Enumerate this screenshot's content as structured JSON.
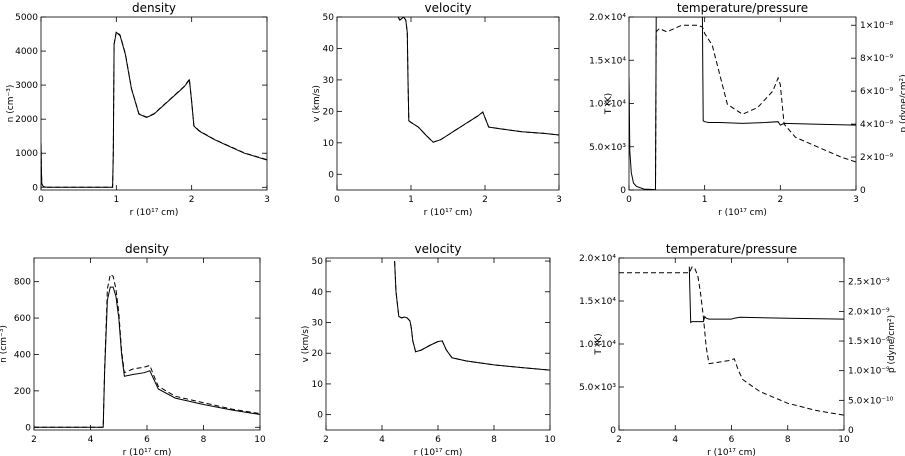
{
  "chart_data": [
    {
      "type": "line",
      "title": "density",
      "xlabel": "r (10¹⁷ cm)",
      "ylabel": "n (cm⁻³)",
      "xlim": [
        0,
        3
      ],
      "ylim": [
        -80,
        5000
      ],
      "xticks": [
        0,
        1,
        2,
        3
      ],
      "xticklabels": [
        "0",
        "1",
        "2",
        "3"
      ],
      "yticks": [
        0,
        1000,
        2000,
        3000,
        4000,
        5000
      ],
      "yticklabels": [
        "0",
        "1000",
        "2000",
        "3000",
        "4000",
        "5000"
      ],
      "series": [
        {
          "style": "solid",
          "x": [
            0,
            0.005,
            0.01,
            0.03,
            0.08,
            0.5,
            0.95,
            0.96,
            0.97,
            1.0,
            1.05,
            1.12,
            1.2,
            1.3,
            1.4,
            1.5,
            1.6,
            1.7,
            1.8,
            1.9,
            1.97,
            2.0,
            2.03,
            2.1,
            2.3,
            2.5,
            2.7,
            3.0
          ],
          "y": [
            1300,
            500,
            100,
            20,
            0,
            0,
            0,
            1000,
            4200,
            4550,
            4450,
            3900,
            2900,
            2150,
            2050,
            2150,
            2350,
            2550,
            2750,
            2950,
            3150,
            2500,
            1800,
            1650,
            1400,
            1200,
            1000,
            800
          ]
        },
        {
          "style": "dashed",
          "x": [
            0,
            0.005,
            0.01,
            0.03,
            0.08,
            0.5,
            0.95,
            0.96,
            0.97,
            1.0,
            1.05,
            1.12,
            1.2,
            1.3,
            1.4,
            1.5,
            1.6,
            1.7,
            1.8,
            1.9,
            1.97,
            2.0,
            2.03,
            2.1,
            2.3,
            2.5,
            2.7,
            3.0
          ],
          "y": [
            1300,
            500,
            100,
            20,
            0,
            0,
            0,
            1000,
            4200,
            4570,
            4470,
            3920,
            2910,
            2160,
            2060,
            2160,
            2360,
            2560,
            2760,
            2960,
            3170,
            2510,
            1810,
            1660,
            1410,
            1210,
            1010,
            810
          ]
        }
      ]
    },
    {
      "type": "line",
      "title": "velocity",
      "xlabel": "r (10¹⁷ cm)",
      "ylabel": "v (km/s)",
      "xlim": [
        0,
        3
      ],
      "ylim": [
        -5,
        50
      ],
      "xticks": [
        0,
        1,
        2,
        3
      ],
      "xticklabels": [
        "0",
        "1",
        "2",
        "3"
      ],
      "yticks": [
        0,
        10,
        20,
        30,
        40,
        50
      ],
      "yticklabels": [
        "0",
        "10",
        "20",
        "30",
        "40",
        "50"
      ],
      "series": [
        {
          "style": "solid",
          "x": [
            0.78,
            0.8,
            0.85,
            0.9,
            0.93,
            0.95,
            0.96,
            0.97,
            1.0,
            1.1,
            1.2,
            1.3,
            1.4,
            1.5,
            1.6,
            1.7,
            1.8,
            1.9,
            1.97,
            2.0,
            2.05,
            2.2,
            2.5,
            2.8,
            3.0
          ],
          "y": [
            50,
            51,
            49,
            50,
            49,
            45,
            30,
            17,
            16.5,
            15,
            12.5,
            10.2,
            11,
            12.5,
            14,
            15.5,
            17,
            18.5,
            19.8,
            18,
            15,
            14.5,
            13.5,
            13,
            12.5
          ]
        },
        {
          "style": "dashed",
          "x": [
            0.78,
            0.8,
            0.85,
            0.9,
            0.93,
            0.95,
            0.96,
            0.97,
            1.0,
            1.1,
            1.2,
            1.3,
            1.4,
            1.5,
            1.6,
            1.7,
            1.8,
            1.9,
            1.97,
            2.0,
            2.05,
            2.2,
            2.5,
            2.8,
            3.0
          ],
          "y": [
            50,
            51,
            49,
            50,
            49,
            45,
            30,
            17,
            16.5,
            15,
            12.5,
            10.2,
            11,
            12.5,
            14,
            15.5,
            17,
            18.5,
            19.8,
            18,
            15,
            14.5,
            13.5,
            13,
            12.5
          ]
        }
      ]
    },
    {
      "type": "line",
      "title": "temperature/pressure",
      "xlabel": "r (10¹⁷ cm)",
      "ylabel": "T (K)",
      "ylabel_right": "p (dyne/cm²)",
      "xlim": [
        0,
        3
      ],
      "ylim": [
        0,
        20000
      ],
      "ylim_right": [
        0,
        1.05e-08
      ],
      "xticks": [
        0,
        1,
        2,
        3
      ],
      "xticklabels": [
        "0",
        "1",
        "2",
        "3"
      ],
      "yticks": [
        0,
        5000,
        10000,
        15000,
        20000
      ],
      "yticklabels": [
        "0",
        "5.0×10³",
        "1.0×10⁴",
        "1.5×10⁴",
        "2.0×10⁴"
      ],
      "yticks_right": [
        0,
        2e-09,
        4e-09,
        6e-09,
        8e-09,
        1e-08
      ],
      "yticklabels_right": [
        "0",
        "2×10⁻⁹",
        "4×10⁻⁹",
        "6×10⁻⁹",
        "8×10⁻⁹",
        "1×10⁻⁸"
      ],
      "series": [
        {
          "style": "solid",
          "axis": "left",
          "x": [
            0,
            0.01,
            0.03,
            0.06,
            0.1,
            0.2,
            0.35,
            0.36,
            0.37,
            0.97,
            0.98,
            1.0,
            1.05,
            1.2,
            1.5,
            1.8,
            1.97,
            2.0,
            2.05,
            2.5,
            3.0
          ],
          "y": [
            13000,
            4500,
            2000,
            800,
            400,
            100,
            50,
            20000,
            20000,
            20000,
            8000,
            7900,
            7800,
            7800,
            7700,
            7800,
            7900,
            7500,
            7700,
            7600,
            7500
          ]
        },
        {
          "style": "dashed",
          "axis": "right",
          "x": [
            0,
            0.02,
            0.05,
            0.1,
            0.2,
            0.35,
            0.36,
            0.4,
            0.5,
            0.7,
            0.9,
            0.97,
            1.0,
            1.1,
            1.2,
            1.3,
            1.5,
            1.7,
            1.9,
            1.97,
            2.0,
            2.05,
            2.2,
            2.5,
            2.8,
            3.0
          ],
          "y": [
            0,
            0,
            0,
            0,
            0,
            0,
            9.6e-09,
            9.8e-09,
            9.6e-09,
            1e-08,
            1e-08,
            9.9e-09,
            9.5e-09,
            8.8e-09,
            7e-09,
            5.2e-09,
            4.6e-09,
            5e-09,
            6e-09,
            6.8e-09,
            6.4e-09,
            4e-09,
            3.2e-09,
            2.6e-09,
            2e-09,
            1.7e-09
          ]
        }
      ]
    },
    {
      "type": "line",
      "title": "density",
      "xlabel": "r (10¹⁷ cm)",
      "ylabel": "n (cm⁻³)",
      "xlim": [
        2,
        10
      ],
      "ylim": [
        -15,
        930
      ],
      "xticks": [
        2,
        4,
        6,
        8,
        10
      ],
      "xticklabels": [
        "2",
        "4",
        "6",
        "8",
        "10"
      ],
      "yticks": [
        0,
        200,
        400,
        600,
        800
      ],
      "yticklabels": [
        "0",
        "200",
        "400",
        "600",
        "800"
      ],
      "series": [
        {
          "style": "solid",
          "x": [
            2,
            4.45,
            4.5,
            4.6,
            4.7,
            4.8,
            4.9,
            5.0,
            5.1,
            5.2,
            5.5,
            5.9,
            6.1,
            6.25,
            6.4,
            7,
            8,
            9,
            10
          ],
          "y": [
            0,
            0,
            300,
            700,
            770,
            770,
            720,
            600,
            400,
            280,
            290,
            300,
            310,
            260,
            210,
            160,
            125,
            95,
            70
          ]
        },
        {
          "style": "dashed",
          "x": [
            2,
            4.45,
            4.5,
            4.6,
            4.7,
            4.8,
            4.9,
            5.0,
            5.1,
            5.2,
            5.5,
            5.9,
            6.1,
            6.25,
            6.4,
            7,
            8,
            9,
            10
          ],
          "y": [
            0,
            0,
            320,
            760,
            840,
            830,
            760,
            630,
            420,
            300,
            320,
            330,
            340,
            280,
            225,
            170,
            135,
            100,
            75
          ]
        }
      ]
    },
    {
      "type": "line",
      "title": "velocity",
      "xlabel": "r (10¹⁷ cm)",
      "ylabel": "v (km/s)",
      "xlim": [
        2,
        10
      ],
      "ylim": [
        -5,
        51
      ],
      "xticks": [
        2,
        4,
        6,
        8,
        10
      ],
      "xticklabels": [
        "2",
        "4",
        "6",
        "8",
        "10"
      ],
      "yticks": [
        0,
        10,
        20,
        30,
        40,
        50
      ],
      "yticklabels": [
        "0",
        "10",
        "20",
        "30",
        "40",
        "50"
      ],
      "series": [
        {
          "style": "solid",
          "x": [
            4.45,
            4.5,
            4.6,
            4.7,
            4.8,
            4.9,
            5.0,
            5.05,
            5.1,
            5.2,
            5.4,
            5.7,
            6.0,
            6.15,
            6.3,
            6.5,
            7,
            8,
            9,
            10
          ],
          "y": [
            50,
            40,
            32,
            31.5,
            31.8,
            31.5,
            30.5,
            28,
            24,
            20.5,
            21,
            22.5,
            23.8,
            24,
            21,
            18.5,
            17.5,
            16.2,
            15.3,
            14.5
          ]
        },
        {
          "style": "dashed",
          "x": [
            4.45,
            4.5,
            4.6,
            4.7,
            4.8,
            4.9,
            5.0,
            5.05,
            5.1,
            5.2,
            5.4,
            5.7,
            6.0,
            6.15,
            6.3,
            6.5,
            7,
            8,
            9,
            10
          ],
          "y": [
            50,
            40,
            32,
            31.5,
            31.8,
            31.5,
            30.5,
            28,
            24,
            20.5,
            21,
            22.5,
            23.8,
            24,
            21,
            18.5,
            17.5,
            16.2,
            15.3,
            14.5
          ]
        }
      ]
    },
    {
      "type": "line",
      "title": "temperature/pressure",
      "xlabel": "r (10¹⁷ cm)",
      "ylabel": "T (K)",
      "ylabel_right": "p (dyne/cm²)",
      "xlim": [
        2,
        10
      ],
      "ylim": [
        0,
        20000
      ],
      "ylim_right": [
        0,
        2.9e-09
      ],
      "xticks": [
        2,
        4,
        6,
        8,
        10
      ],
      "xticklabels": [
        "2",
        "4",
        "6",
        "8",
        "10"
      ],
      "yticks": [
        0,
        5000,
        10000,
        15000,
        20000
      ],
      "yticklabels": [
        "0",
        "5.0×10³",
        "1.0×10⁴",
        "1.5×10⁴",
        "2.0×10⁴"
      ],
      "yticks_right": [
        0,
        5e-10,
        1e-09,
        1.5e-09,
        2e-09,
        2.5e-09
      ],
      "yticklabels_right": [
        "0",
        "5.0×10⁻¹⁰",
        "1.0×10⁻⁹",
        "1.5×10⁻⁹",
        "2.0×10⁻⁹",
        "2.5×10⁻⁹"
      ],
      "series": [
        {
          "style": "solid",
          "axis": "left",
          "x": [
            4.5,
            4.52,
            4.55,
            4.6,
            5.0,
            5.05,
            5.1,
            5.2,
            6.0,
            6.1,
            6.3,
            8,
            10
          ],
          "y": [
            19000,
            16000,
            12500,
            12600,
            12600,
            13200,
            13000,
            12900,
            12900,
            13000,
            13100,
            13000,
            12900
          ]
        },
        {
          "style": "dashed",
          "axis": "right",
          "x": [
            2,
            4.5,
            4.6,
            4.7,
            4.8,
            4.9,
            5.0,
            5.1,
            5.2,
            5.5,
            5.9,
            6.1,
            6.25,
            6.4,
            7,
            8,
            9,
            10
          ],
          "y": [
            2.65e-09,
            2.65e-09,
            2.75e-09,
            2.72e-09,
            2.6e-09,
            2.3e-09,
            1.9e-09,
            1.4e-09,
            1.12e-09,
            1.14e-09,
            1.17e-09,
            1.2e-09,
            1e-09,
            8.5e-10,
            6.5e-10,
            4.5e-10,
            3.3e-10,
            2.5e-10
          ]
        }
      ]
    }
  ]
}
